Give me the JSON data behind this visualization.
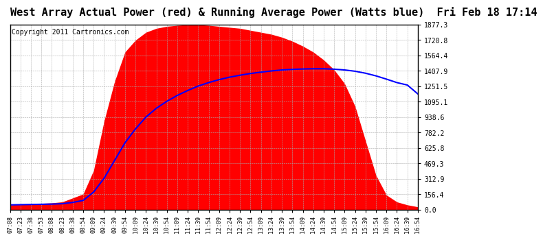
{
  "title": "West Array Actual Power (red) & Running Average Power (Watts blue)  Fri Feb 18 17:14",
  "copyright": "Copyright 2011 Cartronics.com",
  "y_max": 1877.3,
  "y_min": 0.0,
  "y_ticks": [
    0.0,
    156.4,
    312.9,
    469.3,
    625.8,
    782.2,
    938.6,
    1095.1,
    1251.5,
    1407.9,
    1564.4,
    1720.8,
    1877.3
  ],
  "x_labels": [
    "07:08",
    "07:23",
    "07:38",
    "07:53",
    "08:08",
    "08:23",
    "08:38",
    "08:54",
    "09:09",
    "09:24",
    "09:39",
    "09:54",
    "10:09",
    "10:24",
    "10:39",
    "10:54",
    "11:09",
    "11:24",
    "11:39",
    "11:54",
    "12:09",
    "12:24",
    "12:39",
    "12:54",
    "13:09",
    "13:24",
    "13:39",
    "13:54",
    "14:09",
    "14:24",
    "14:39",
    "14:54",
    "15:09",
    "15:24",
    "15:39",
    "15:54",
    "16:09",
    "16:24",
    "16:39",
    "16:54"
  ],
  "actual_power": [
    50,
    55,
    60,
    65,
    70,
    80,
    120,
    160,
    400,
    900,
    1300,
    1600,
    1720,
    1800,
    1840,
    1860,
    1870,
    1877,
    1877,
    1870,
    1860,
    1850,
    1840,
    1820,
    1800,
    1780,
    1750,
    1710,
    1660,
    1600,
    1520,
    1420,
    1280,
    1050,
    700,
    350,
    150,
    80,
    50,
    30
  ],
  "avg_power": [
    50,
    52,
    54,
    56,
    58,
    62,
    75,
    95,
    180,
    320,
    500,
    680,
    820,
    940,
    1030,
    1100,
    1160,
    1210,
    1255,
    1290,
    1320,
    1345,
    1365,
    1382,
    1396,
    1408,
    1418,
    1424,
    1428,
    1430,
    1430,
    1426,
    1418,
    1405,
    1385,
    1358,
    1325,
    1290,
    1265,
    1175
  ],
  "background_color": "#ffffff",
  "fill_color": "#ff0000",
  "line_color": "#0000ff",
  "grid_color": "#aaaaaa",
  "title_fontsize": 11,
  "copyright_fontsize": 7,
  "axis_fontsize": 7,
  "xlabel_fontsize": 6
}
